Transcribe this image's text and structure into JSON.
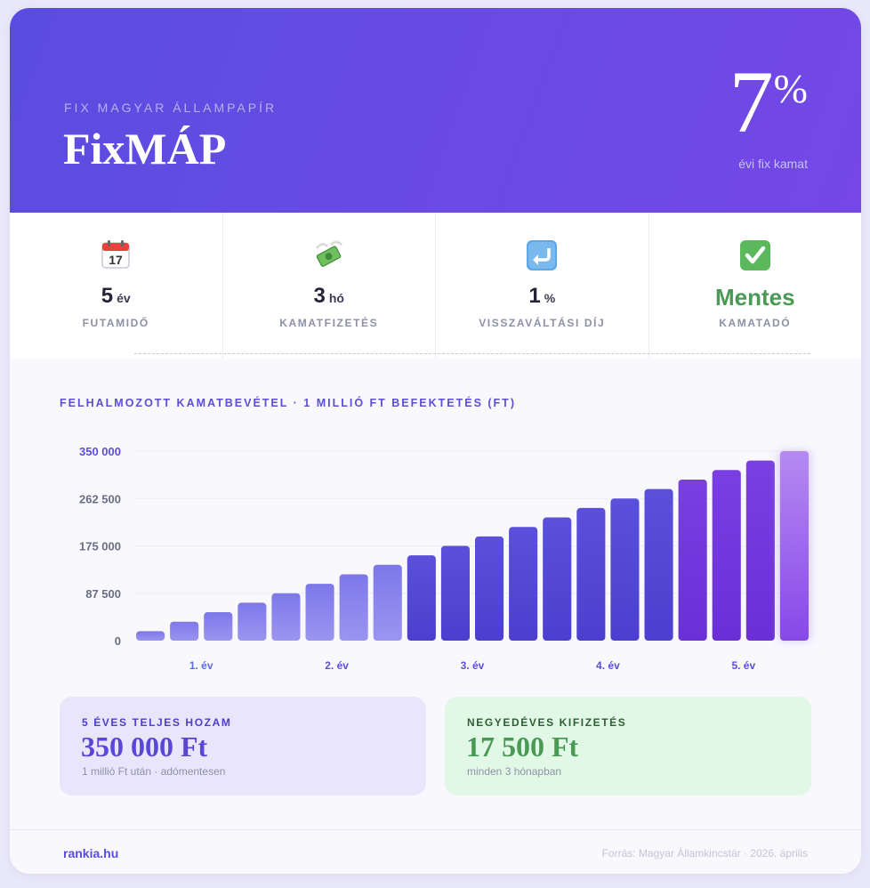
{
  "header": {
    "eyebrow": "FIX MAGYAR ÁLLAMPAPÍR",
    "title": "FixMÁP",
    "rate_value": "7",
    "rate_unit": "%",
    "rate_caption": "évi fix kamat"
  },
  "stats": [
    {
      "icon": "calendar-icon",
      "value": "5",
      "unit": "év",
      "label": "FUTAMIDŐ"
    },
    {
      "icon": "money-with-wings-icon",
      "value": "3",
      "unit": "hó",
      "label": "KAMATFIZETÉS"
    },
    {
      "icon": "return-arrow-icon",
      "value": "1",
      "unit": "%",
      "label": "VISSZAVÁLTÁSI DÍJ"
    },
    {
      "icon": "check-mark-icon",
      "value": "Mentes",
      "unit": "",
      "label": "KAMATADÓ"
    }
  ],
  "chart_data": {
    "type": "bar",
    "title": "FELHALMOZOTT KAMATBEVÉTEL · 1 MILLIÓ FT BEFEKTETÉS (FT)",
    "x": [
      1,
      2,
      3,
      4,
      5,
      6,
      7,
      8,
      9,
      10,
      11,
      12,
      13,
      14,
      15,
      16,
      17,
      18,
      19,
      20
    ],
    "x_tick_labels": [
      "1. év",
      "2. év",
      "3. év",
      "4. év",
      "5. év"
    ],
    "values": [
      17500,
      35000,
      52500,
      70000,
      87500,
      105000,
      122500,
      140000,
      157500,
      175000,
      192500,
      210000,
      227500,
      245000,
      262500,
      280000,
      297500,
      315000,
      332500,
      350000
    ],
    "ylim": [
      0,
      350000
    ],
    "y_ticks": [
      0,
      87500,
      175000,
      262500,
      350000
    ],
    "y_tick_labels": [
      "0",
      "87 500",
      "175 000",
      "262 500",
      "350 000"
    ],
    "colors": {
      "light": "#8b86ee",
      "mid": "#5a4bd7",
      "dark": "#7433dc",
      "last": "#a878f0"
    }
  },
  "summary": {
    "left": {
      "label": "5 ÉVES TELJES HOZAM",
      "value": "350 000 Ft",
      "sub": "1 millió Ft után · adómentesen"
    },
    "right": {
      "label": "NEGYEDÉVES KIFIZETÉS",
      "value": "17 500 Ft",
      "sub": "minden 3 hónapban"
    }
  },
  "footer": {
    "brand": "rankia.hu",
    "source": "Forrás: Magyar Államkincstár · 2026. április"
  }
}
